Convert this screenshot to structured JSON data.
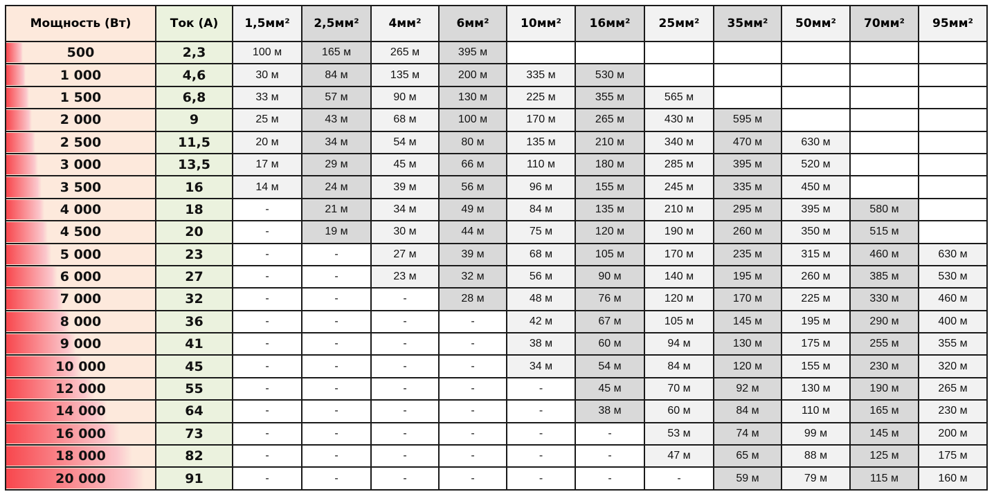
{
  "headers": {
    "power": "Мощность (Вт)",
    "current": "Ток (А)",
    "sections": [
      "1,5мм²",
      "2,5мм²",
      "4мм²",
      "6мм²",
      "10мм²",
      "16мм²",
      "25мм²",
      "35мм²",
      "50мм²",
      "70мм²",
      "95мм²"
    ]
  },
  "colors": {
    "power_bg": "#fde9dc",
    "current_bg": "#ebf2de",
    "light_col": "#f2f2f2",
    "dark_col": "#d9d9d9",
    "bar": "#f8474d"
  },
  "rows": [
    {
      "power": "500",
      "power_value": 500,
      "current": "2,3",
      "lengths": [
        "100 м",
        "165 м",
        "265 м",
        "395 м",
        "",
        "",
        "",
        "",
        "",
        "",
        ""
      ]
    },
    {
      "power": "1 000",
      "power_value": 1000,
      "current": "4,6",
      "lengths": [
        "30 м",
        "84 м",
        "135 м",
        "200 м",
        "335 м",
        "530 м",
        "",
        "",
        "",
        "",
        ""
      ]
    },
    {
      "power": "1 500",
      "power_value": 1500,
      "current": "6,8",
      "lengths": [
        "33 м",
        "57 м",
        "90 м",
        "130 м",
        "225 м",
        "355 м",
        "565 м",
        "",
        "",
        "",
        ""
      ]
    },
    {
      "power": "2 000",
      "power_value": 2000,
      "current": "9",
      "lengths": [
        "25 м",
        "43 м",
        "68 м",
        "100 м",
        "170 м",
        "265 м",
        "430 м",
        "595 м",
        "",
        "",
        ""
      ]
    },
    {
      "power": "2 500",
      "power_value": 2500,
      "current": "11,5",
      "lengths": [
        "20 м",
        "34 м",
        "54 м",
        "80 м",
        "135 м",
        "210 м",
        "340 м",
        "470 м",
        "630 м",
        "",
        ""
      ]
    },
    {
      "power": "3 000",
      "power_value": 3000,
      "current": "13,5",
      "lengths": [
        "17 м",
        "29 м",
        "45 м",
        "66 м",
        "110 м",
        "180 м",
        "285 м",
        "395 м",
        "520 м",
        "",
        ""
      ]
    },
    {
      "power": "3 500",
      "power_value": 3500,
      "current": "16",
      "lengths": [
        "14 м",
        "24 м",
        "39 м",
        "56 м",
        "96 м",
        "155 м",
        "245 м",
        "335 м",
        "450 м",
        "",
        ""
      ]
    },
    {
      "power": "4 000",
      "power_value": 4000,
      "current": "18",
      "lengths": [
        "-",
        "21 м",
        "34 м",
        "49 м",
        "84 м",
        "135 м",
        "210 м",
        "295 м",
        "395 м",
        "580 м",
        ""
      ]
    },
    {
      "power": "4 500",
      "power_value": 4500,
      "current": "20",
      "lengths": [
        "-",
        "19 м",
        "30 м",
        "44 м",
        "75 м",
        "120 м",
        "190 м",
        "260 м",
        "350 м",
        "515 м",
        ""
      ]
    },
    {
      "power": "5 000",
      "power_value": 5000,
      "current": "23",
      "lengths": [
        "-",
        "-",
        "27 м",
        "39 м",
        "68 м",
        "105 м",
        "170 м",
        "235 м",
        "315 м",
        "460 м",
        "630 м"
      ]
    },
    {
      "power": "6 000",
      "power_value": 6000,
      "current": "27",
      "lengths": [
        "-",
        "-",
        "23 м",
        "32 м",
        "56 м",
        "90 м",
        "140 м",
        "195 м",
        "260 м",
        "385 м",
        "530 м"
      ]
    },
    {
      "power": "7 000",
      "power_value": 7000,
      "current": "32",
      "lengths": [
        "-",
        "-",
        "-",
        "28 м",
        "48 м",
        "76 м",
        "120 м",
        "170 м",
        "225 м",
        "330 м",
        "460 м"
      ]
    },
    {
      "power": "8 000",
      "power_value": 8000,
      "current": "36",
      "lengths": [
        "-",
        "-",
        "-",
        "-",
        "42 м",
        "67 м",
        "105 м",
        "145 м",
        "195 м",
        "290 м",
        "400 м"
      ]
    },
    {
      "power": "9 000",
      "power_value": 9000,
      "current": "41",
      "lengths": [
        "-",
        "-",
        "-",
        "-",
        "38 м",
        "60 м",
        "94 м",
        "130 м",
        "175 м",
        "255 м",
        "355 м"
      ]
    },
    {
      "power": "10 000",
      "power_value": 10000,
      "current": "45",
      "lengths": [
        "-",
        "-",
        "-",
        "-",
        "34 м",
        "54 м",
        "84 м",
        "120 м",
        "155 м",
        "230 м",
        "320 м"
      ]
    },
    {
      "power": "12 000",
      "power_value": 12000,
      "current": "55",
      "lengths": [
        "-",
        "-",
        "-",
        "-",
        "-",
        "45 м",
        "70 м",
        "92 м",
        "130 м",
        "190 м",
        "265 м"
      ]
    },
    {
      "power": "14 000",
      "power_value": 14000,
      "current": "64",
      "lengths": [
        "-",
        "-",
        "-",
        "-",
        "-",
        "38 м",
        "60 м",
        "84 м",
        "110 м",
        "165 м",
        "230 м"
      ]
    },
    {
      "power": "16 000",
      "power_value": 16000,
      "current": "73",
      "lengths": [
        "-",
        "-",
        "-",
        "-",
        "-",
        "-",
        "53 м",
        "74 м",
        "99 м",
        "145 м",
        "200 м"
      ]
    },
    {
      "power": "18 000",
      "power_value": 18000,
      "current": "82",
      "lengths": [
        "-",
        "-",
        "-",
        "-",
        "-",
        "-",
        "47 м",
        "65 м",
        "88 м",
        "125 м",
        "175 м"
      ]
    },
    {
      "power": "20 000",
      "power_value": 20000,
      "current": "91",
      "lengths": [
        "-",
        "-",
        "-",
        "-",
        "-",
        "-",
        "-",
        "59 м",
        "79 м",
        "115 м",
        "160 м"
      ]
    }
  ]
}
